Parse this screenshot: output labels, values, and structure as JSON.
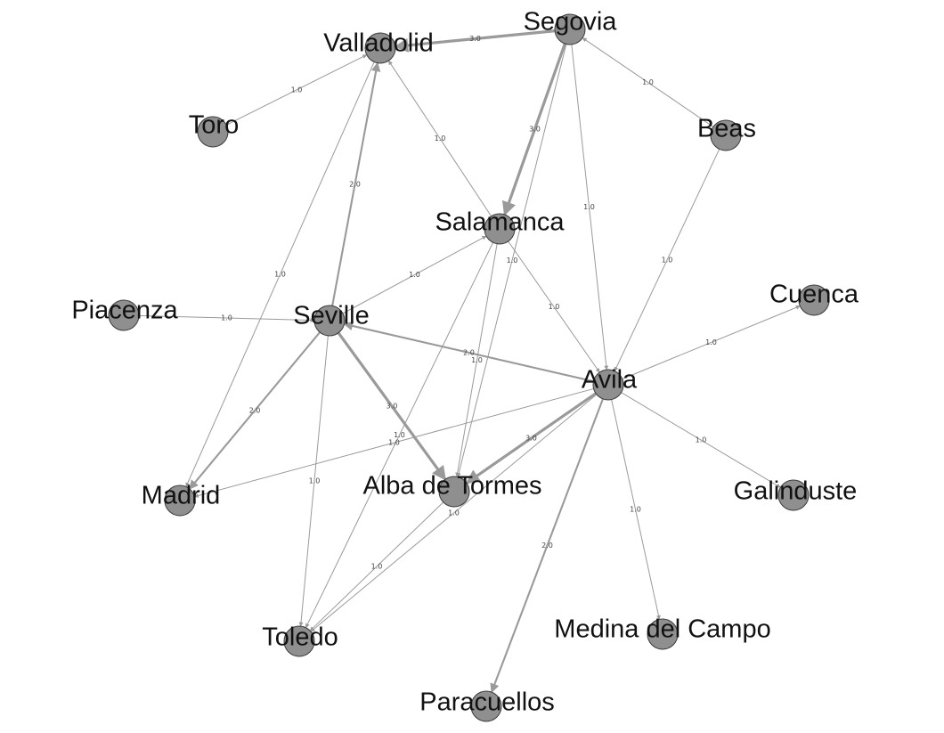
{
  "nodes": [
    {
      "id": "segovia",
      "label": "Segovia"
    },
    {
      "id": "valladolid",
      "label": "Valladolid"
    },
    {
      "id": "toro",
      "label": "Toro"
    },
    {
      "id": "beas",
      "label": "Beas"
    },
    {
      "id": "salamanca",
      "label": "Salamanca"
    },
    {
      "id": "cuenca",
      "label": "Cuenca"
    },
    {
      "id": "piacenza",
      "label": "Piacenza"
    },
    {
      "id": "seville",
      "label": "Seville"
    },
    {
      "id": "avila",
      "label": "Avila"
    },
    {
      "id": "madrid",
      "label": "Madrid"
    },
    {
      "id": "alba",
      "label": "Alba de Tormes"
    },
    {
      "id": "galinduste",
      "label": "Galinduste"
    },
    {
      "id": "toledo",
      "label": "Toledo"
    },
    {
      "id": "medina",
      "label": "Medina del Campo"
    },
    {
      "id": "paracuellos",
      "label": "Paracuellos"
    }
  ],
  "edges": [
    {
      "from": "segovia",
      "to": "valladolid",
      "weight": "3.0"
    },
    {
      "from": "segovia",
      "to": "salamanca",
      "weight": "3.0"
    },
    {
      "from": "segovia",
      "to": "avila",
      "weight": "1.0"
    },
    {
      "from": "segovia",
      "to": "alba",
      "weight": "1.0"
    },
    {
      "from": "beas",
      "to": "segovia",
      "weight": "1.0"
    },
    {
      "from": "beas",
      "to": "avila",
      "weight": "1.0"
    },
    {
      "from": "toro",
      "to": "valladolid",
      "weight": "1.0"
    },
    {
      "from": "valladolid",
      "to": "madrid",
      "weight": "1.0"
    },
    {
      "from": "salamanca",
      "to": "valladolid",
      "weight": "1.0"
    },
    {
      "from": "salamanca",
      "to": "avila",
      "weight": "1.0"
    },
    {
      "from": "salamanca",
      "to": "alba",
      "weight": "1.0"
    },
    {
      "from": "salamanca",
      "to": "toledo",
      "weight": "1.0"
    },
    {
      "from": "seville",
      "to": "valladolid",
      "weight": "2.0"
    },
    {
      "from": "seville",
      "to": "salamanca",
      "weight": "1.0"
    },
    {
      "from": "piacenza",
      "to": "seville",
      "weight": "1.0"
    },
    {
      "from": "seville",
      "to": "madrid",
      "weight": "2.0"
    },
    {
      "from": "seville",
      "to": "alba",
      "weight": "3.0"
    },
    {
      "from": "seville",
      "to": "toledo",
      "weight": "1.0"
    },
    {
      "from": "avila",
      "to": "seville",
      "weight": "2.0"
    },
    {
      "from": "avila",
      "to": "cuenca",
      "weight": "1.0"
    },
    {
      "from": "avila",
      "to": "galinduste",
      "weight": "1.0"
    },
    {
      "from": "avila",
      "to": "madrid",
      "weight": "1.0"
    },
    {
      "from": "avila",
      "to": "alba",
      "weight": "3.0"
    },
    {
      "from": "avila",
      "to": "toledo",
      "weight": "1.0"
    },
    {
      "from": "avila",
      "to": "medina",
      "weight": "1.0"
    },
    {
      "from": "avila",
      "to": "paracuellos",
      "weight": "2.0"
    },
    {
      "from": "alba",
      "to": "toledo",
      "weight": "1.0"
    }
  ]
}
